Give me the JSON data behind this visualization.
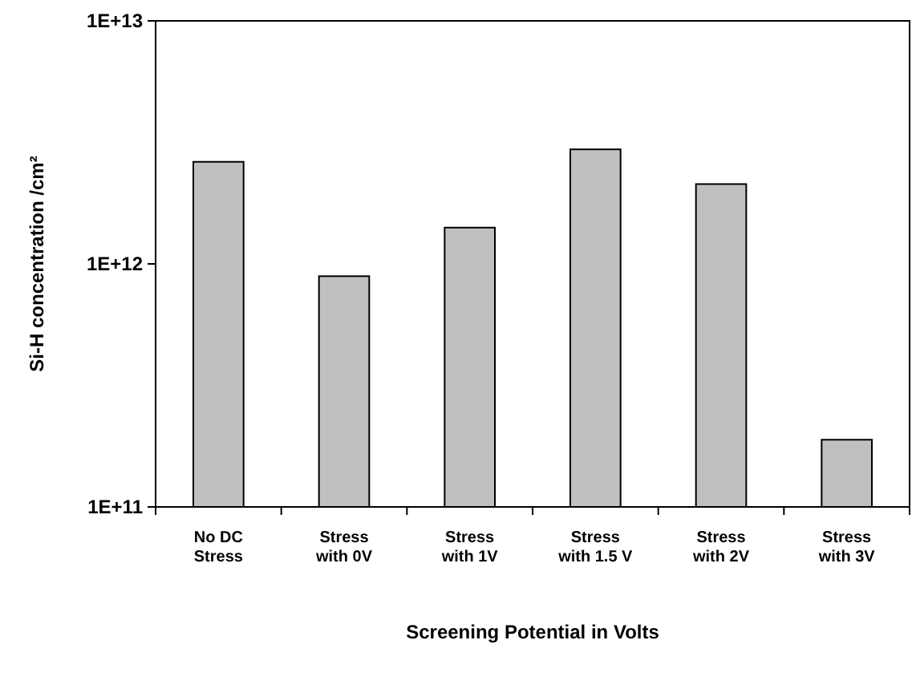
{
  "chart_data": {
    "type": "bar",
    "xlabel": "Screening Potential in Volts",
    "ylabel": "Si-H concentration /cm²",
    "categories": [
      "No DC\nStress",
      "Stress\nwith 0V",
      "Stress\nwith 1V",
      "Stress\nwith 1.5 V",
      "Stress\nwith 2V",
      "Stress\nwith 3V"
    ],
    "values": [
      2630000000000.0,
      890000000000.0,
      1410000000000.0,
      2960000000000.0,
      2130000000000.0,
      189000000000.0
    ],
    "color": "#c0c0c0",
    "log": true,
    "ylim": [
      100000000000.0,
      10000000000000.0
    ],
    "yticks": [
      {
        "value": 100000000000.0,
        "label": "1E+11"
      },
      {
        "value": 1000000000000.0,
        "label": "1E+12"
      },
      {
        "value": 10000000000000.0,
        "label": "1E+13"
      }
    ],
    "grid": false
  }
}
